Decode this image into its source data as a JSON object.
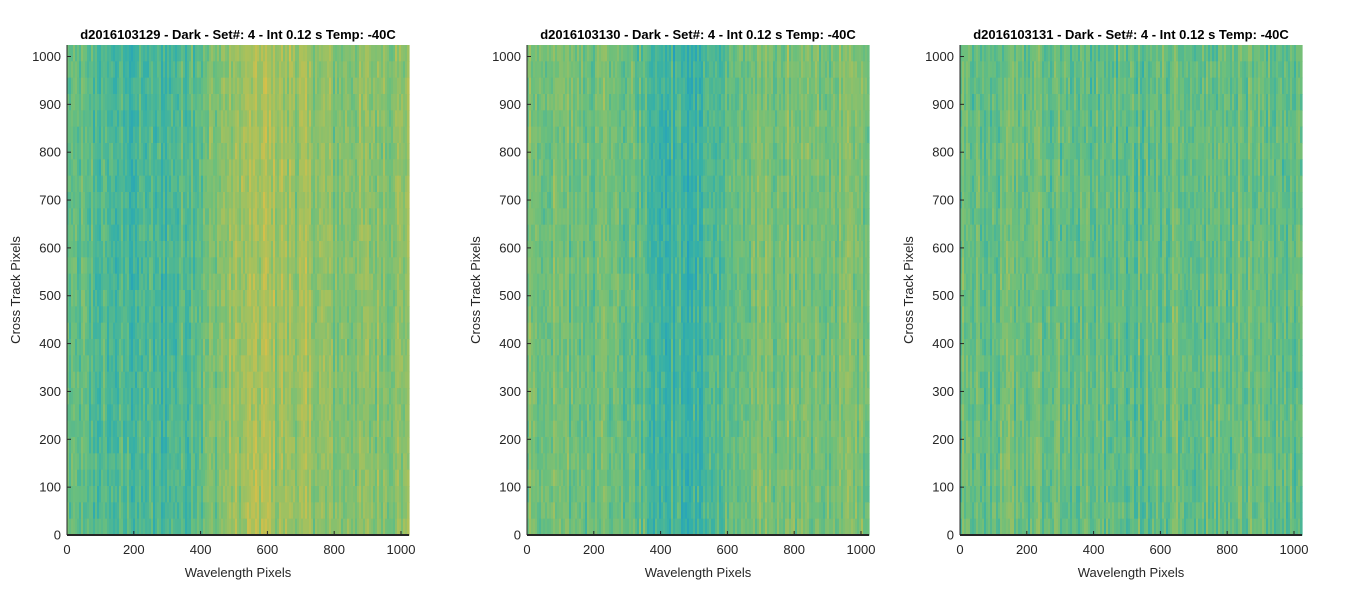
{
  "chart_data": [
    {
      "type": "heatmap",
      "title": "d2016103129 - Dark - Set#: 4 - Int 0.12 s Temp: -40C",
      "xlabel": "Wavelength Pixels",
      "ylabel": "Cross Track Pixels",
      "xlim": [
        0,
        1024
      ],
      "ylim": [
        0,
        1024
      ],
      "xticks": [
        "0",
        "200",
        "400",
        "600",
        "800",
        "1000"
      ],
      "yticks": [
        "0",
        "100",
        "200",
        "300",
        "400",
        "500",
        "600",
        "700",
        "800",
        "900",
        "1000"
      ],
      "column_profile": {
        "x": [
          0,
          100,
          200,
          300,
          400,
          500,
          600,
          700,
          800,
          900,
          1024
        ],
        "level": [
          0.45,
          0.38,
          0.32,
          0.34,
          0.48,
          0.68,
          0.76,
          0.68,
          0.6,
          0.62,
          0.64
        ]
      },
      "colormap": [
        "#1e9bc5",
        "#35b0a8",
        "#6cbf7c",
        "#a8c15c",
        "#e0bf45"
      ]
    },
    {
      "type": "heatmap",
      "title": "d2016103130 - Dark - Set#: 4 - Int 0.12 s Temp: -40C",
      "xlabel": "Wavelength Pixels",
      "ylabel": "Cross Track Pixels",
      "xlim": [
        0,
        1024
      ],
      "ylim": [
        0,
        1024
      ],
      "xticks": [
        "0",
        "200",
        "400",
        "600",
        "800",
        "1000"
      ],
      "yticks": [
        "0",
        "100",
        "200",
        "300",
        "400",
        "500",
        "600",
        "700",
        "800",
        "900",
        "1000"
      ],
      "column_profile": {
        "x": [
          0,
          100,
          200,
          300,
          400,
          500,
          600,
          700,
          800,
          900,
          1024
        ],
        "level": [
          0.58,
          0.55,
          0.52,
          0.5,
          0.33,
          0.3,
          0.42,
          0.55,
          0.56,
          0.55,
          0.58
        ]
      },
      "colormap": [
        "#1e9bc5",
        "#35b0a8",
        "#6cbf7c",
        "#a8c15c",
        "#e0bf45"
      ]
    },
    {
      "type": "heatmap",
      "title": "d2016103131 - Dark - Set#: 4 - Int 0.12 s Temp: -40C",
      "xlabel": "Wavelength Pixels",
      "ylabel": "Cross Track Pixels",
      "xlim": [
        0,
        1024
      ],
      "ylim": [
        0,
        1024
      ],
      "xticks": [
        "0",
        "200",
        "400",
        "600",
        "800",
        "1000"
      ],
      "yticks": [
        "0",
        "100",
        "200",
        "300",
        "400",
        "500",
        "600",
        "700",
        "800",
        "900",
        "1000"
      ],
      "column_profile": {
        "x": [
          0,
          100,
          200,
          300,
          400,
          500,
          600,
          700,
          800,
          900,
          1024
        ],
        "level": [
          0.5,
          0.48,
          0.5,
          0.48,
          0.46,
          0.44,
          0.46,
          0.48,
          0.48,
          0.46,
          0.48
        ]
      },
      "colormap": [
        "#1e9bc5",
        "#35b0a8",
        "#6cbf7c",
        "#a8c15c",
        "#e0bf45"
      ]
    }
  ]
}
